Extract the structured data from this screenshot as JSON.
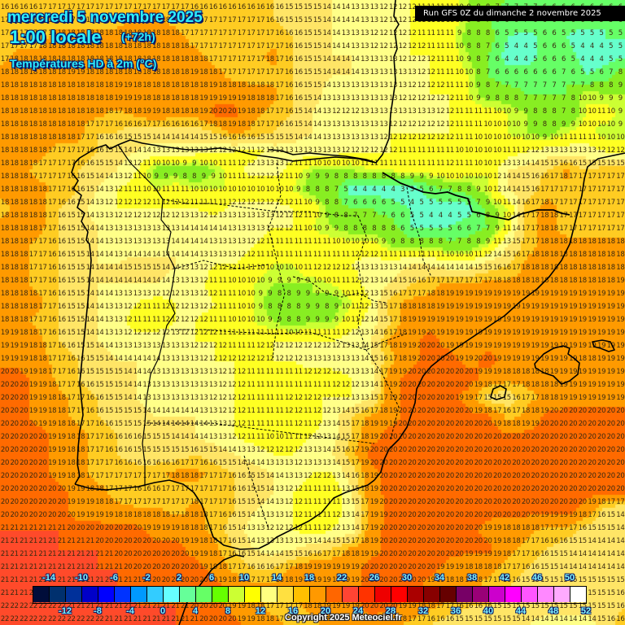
{
  "header": {
    "date": "mercredi 5 novembre 2025",
    "hour": "1:00 locale",
    "offset": "(+72h)",
    "parameter": "Températures HD à 2m (°C)"
  },
  "run_info": "Run GFS 0Z du dimanche 2 novembre 2025",
  "copyright": "Copyright 2025 Meteociel.fr",
  "legend": {
    "colors": [
      "#000d3a",
      "#00306e",
      "#00309a",
      "#0000c8",
      "#0000ff",
      "#0033ff",
      "#0099ff",
      "#33ccff",
      "#66ffff",
      "#66ff99",
      "#66ff66",
      "#66ff00",
      "#ccff33",
      "#ffff00",
      "#ffff80",
      "#ffe040",
      "#ffc000",
      "#ff9900",
      "#ff6600",
      "#ff4433",
      "#ff3300",
      "#ee0000",
      "#ff0000",
      "#aa0000",
      "#880000",
      "#660000",
      "#770066",
      "#990077",
      "#cc00cc",
      "#ff00ff",
      "#ff55ff",
      "#ff88ff",
      "#ffaaff",
      "#ffffff"
    ],
    "top_ticks": [
      "-14",
      "-10",
      "-6",
      "-2",
      "2",
      "6",
      "10",
      "14",
      "18",
      "22",
      "26",
      "30",
      "34",
      "38",
      "42",
      "46",
      "50"
    ],
    "bottom_ticks": [
      "-12",
      "-8",
      "-4",
      "0",
      "4",
      "8",
      "12",
      "16",
      "20",
      "24",
      "28",
      "32",
      "36",
      "40",
      "44",
      "48",
      "52"
    ]
  },
  "map": {
    "region": "Péninsule Ibérique / Golfe de Gascogne / Baléares",
    "grid_cols": 66,
    "grid_rows": 48,
    "coarse_field": [
      [
        16,
        16,
        16,
        17,
        17,
        17,
        17,
        17,
        17,
        17,
        16,
        16,
        16,
        16,
        16,
        15,
        15,
        14,
        13,
        13,
        12,
        12,
        11,
        11,
        9,
        8,
        7,
        7,
        6,
        6,
        6,
        6,
        6
      ],
      [
        17,
        17,
        17,
        17,
        17,
        17,
        17,
        18,
        18,
        17,
        17,
        17,
        17,
        17,
        16,
        15,
        15,
        14,
        14,
        13,
        12,
        12,
        11,
        11,
        9,
        7,
        6,
        7,
        6,
        6,
        6,
        5,
        6
      ],
      [
        17,
        17,
        17,
        18,
        18,
        18,
        18,
        18,
        18,
        18,
        17,
        17,
        17,
        17,
        17,
        16,
        15,
        14,
        13,
        12,
        12,
        12,
        11,
        11,
        8,
        8,
        5,
        4,
        6,
        5,
        4,
        5,
        5
      ],
      [
        17,
        18,
        18,
        18,
        18,
        18,
        18,
        18,
        18,
        18,
        18,
        17,
        17,
        17,
        18,
        16,
        15,
        14,
        14,
        13,
        13,
        12,
        12,
        11,
        9,
        7,
        4,
        4,
        6,
        6,
        4,
        4,
        5
      ],
      [
        18,
        18,
        18,
        18,
        19,
        18,
        18,
        18,
        18,
        18,
        19,
        18,
        17,
        17,
        17,
        16,
        15,
        14,
        14,
        13,
        13,
        13,
        12,
        11,
        10,
        7,
        6,
        6,
        6,
        7,
        5,
        6,
        9
      ],
      [
        18,
        18,
        18,
        18,
        18,
        18,
        19,
        19,
        18,
        18,
        18,
        19,
        19,
        18,
        18,
        16,
        15,
        13,
        13,
        13,
        13,
        12,
        12,
        12,
        10,
        8,
        8,
        7,
        7,
        7,
        10,
        9,
        9
      ],
      [
        18,
        18,
        18,
        18,
        18,
        18,
        17,
        18,
        19,
        18,
        18,
        20,
        20,
        18,
        17,
        16,
        14,
        12,
        12,
        13,
        13,
        13,
        13,
        12,
        11,
        11,
        10,
        9,
        8,
        7,
        10,
        11,
        9
      ],
      [
        18,
        18,
        18,
        18,
        18,
        16,
        16,
        15,
        15,
        15,
        15,
        16,
        18,
        17,
        16,
        15,
        14,
        13,
        13,
        13,
        12,
        12,
        12,
        12,
        11,
        10,
        10,
        9,
        8,
        10,
        11,
        9,
        9
      ],
      [
        18,
        18,
        18,
        17,
        17,
        16,
        15,
        14,
        13,
        13,
        13,
        12,
        12,
        11,
        13,
        13,
        13,
        13,
        12,
        12,
        12,
        11,
        11,
        11,
        10,
        10,
        11,
        12,
        13,
        13,
        13,
        12,
        12
      ],
      [
        18,
        18,
        17,
        17,
        16,
        15,
        14,
        12,
        8,
        8,
        7,
        9,
        11,
        13,
        13,
        11,
        9,
        9,
        9,
        10,
        10,
        11,
        11,
        12,
        11,
        10,
        14,
        15,
        16,
        18,
        16,
        17,
        17
      ],
      [
        18,
        18,
        18,
        17,
        16,
        14,
        12,
        11,
        10,
        11,
        10,
        10,
        10,
        10,
        10,
        10,
        8,
        8,
        4,
        4,
        4,
        3,
        6,
        7,
        8,
        10,
        14,
        15,
        17,
        17,
        17,
        17,
        17
      ],
      [
        17,
        18,
        18,
        16,
        15,
        13,
        12,
        12,
        12,
        12,
        12,
        11,
        13,
        13,
        13,
        12,
        11,
        8,
        7,
        7,
        6,
        5,
        4,
        4,
        4,
        8,
        10,
        17,
        18,
        17,
        17,
        17,
        17
      ],
      [
        18,
        18,
        18,
        16,
        15,
        14,
        13,
        13,
        13,
        13,
        14,
        14,
        13,
        13,
        12,
        12,
        10,
        9,
        8,
        8,
        8,
        5,
        5,
        5,
        6,
        7,
        11,
        17,
        18,
        17,
        17,
        17,
        17
      ],
      [
        18,
        18,
        17,
        16,
        15,
        14,
        13,
        13,
        13,
        14,
        14,
        13,
        13,
        12,
        11,
        11,
        11,
        11,
        11,
        11,
        9,
        9,
        9,
        8,
        8,
        10,
        14,
        17,
        18,
        18,
        18,
        18,
        18
      ],
      [
        18,
        18,
        17,
        16,
        15,
        14,
        14,
        15,
        15,
        14,
        13,
        12,
        12,
        11,
        10,
        10,
        12,
        12,
        12,
        13,
        13,
        14,
        14,
        13,
        13,
        15,
        16,
        18,
        18,
        18,
        18,
        18,
        18
      ],
      [
        18,
        18,
        17,
        16,
        15,
        14,
        14,
        14,
        14,
        13,
        13,
        11,
        10,
        10,
        9,
        9,
        9,
        10,
        11,
        13,
        14,
        16,
        17,
        18,
        18,
        18,
        18,
        18,
        18,
        18,
        18,
        18,
        19
      ],
      [
        18,
        18,
        18,
        16,
        15,
        14,
        13,
        12,
        11,
        12,
        13,
        12,
        11,
        10,
        8,
        8,
        9,
        8,
        10,
        12,
        17,
        18,
        18,
        19,
        19,
        19,
        19,
        19,
        19,
        19,
        19,
        19,
        19
      ],
      [
        18,
        18,
        17,
        16,
        15,
        14,
        13,
        11,
        11,
        12,
        12,
        11,
        10,
        10,
        9,
        8,
        9,
        9,
        11,
        13,
        16,
        19,
        19,
        19,
        19,
        19,
        19,
        19,
        19,
        19,
        19,
        19,
        19
      ],
      [
        19,
        19,
        18,
        16,
        15,
        14,
        13,
        13,
        13,
        13,
        12,
        12,
        11,
        11,
        12,
        12,
        12,
        12,
        13,
        14,
        18,
        19,
        20,
        19,
        19,
        19,
        19,
        19,
        19,
        19,
        19,
        19,
        19
      ],
      [
        19,
        19,
        18,
        17,
        16,
        15,
        14,
        14,
        14,
        13,
        13,
        12,
        12,
        12,
        12,
        12,
        13,
        13,
        13,
        14,
        17,
        19,
        20,
        20,
        19,
        20,
        19,
        19,
        19,
        19,
        18,
        19,
        19
      ],
      [
        20,
        20,
        19,
        17,
        16,
        15,
        15,
        14,
        13,
        13,
        13,
        13,
        12,
        11,
        11,
        11,
        11,
        11,
        12,
        13,
        19,
        20,
        20,
        20,
        20,
        19,
        18,
        18,
        18,
        19,
        19,
        19,
        19
      ],
      [
        20,
        20,
        19,
        18,
        17,
        16,
        15,
        14,
        13,
        13,
        13,
        12,
        12,
        11,
        11,
        12,
        12,
        12,
        12,
        14,
        19,
        20,
        20,
        20,
        19,
        15,
        15,
        17,
        18,
        19,
        19,
        19,
        19
      ],
      [
        20,
        20,
        19,
        18,
        17,
        16,
        15,
        15,
        14,
        14,
        14,
        13,
        12,
        11,
        11,
        12,
        11,
        13,
        16,
        18,
        19,
        20,
        20,
        20,
        20,
        20,
        17,
        18,
        20,
        20,
        20,
        20,
        20
      ],
      [
        20,
        20,
        20,
        19,
        18,
        17,
        16,
        16,
        15,
        14,
        14,
        13,
        12,
        11,
        10,
        11,
        12,
        13,
        16,
        19,
        20,
        20,
        20,
        20,
        20,
        20,
        20,
        20,
        20,
        20,
        20,
        20,
        20
      ],
      [
        20,
        20,
        20,
        19,
        18,
        17,
        16,
        15,
        15,
        15,
        16,
        15,
        14,
        13,
        12,
        12,
        13,
        14,
        17,
        20,
        20,
        20,
        20,
        20,
        20,
        20,
        20,
        20,
        20,
        20,
        20,
        20,
        20
      ],
      [
        20,
        20,
        20,
        19,
        18,
        17,
        17,
        17,
        17,
        18,
        18,
        17,
        16,
        15,
        14,
        13,
        12,
        12,
        15,
        19,
        20,
        20,
        20,
        20,
        20,
        20,
        20,
        20,
        20,
        20,
        20,
        20,
        20
      ],
      [
        20,
        20,
        20,
        20,
        19,
        18,
        17,
        16,
        16,
        17,
        17,
        17,
        16,
        15,
        14,
        12,
        11,
        10,
        14,
        19,
        20,
        20,
        20,
        20,
        20,
        20,
        20,
        20,
        20,
        20,
        20,
        20,
        20
      ],
      [
        20,
        20,
        20,
        20,
        19,
        19,
        18,
        18,
        18,
        17,
        18,
        17,
        16,
        14,
        13,
        12,
        11,
        11,
        13,
        18,
        20,
        20,
        20,
        20,
        20,
        20,
        20,
        20,
        20,
        20,
        19,
        15,
        14
      ],
      [
        21,
        21,
        21,
        21,
        20,
        20,
        20,
        20,
        19,
        19,
        18,
        17,
        15,
        13,
        12,
        12,
        11,
        12,
        13,
        19,
        20,
        20,
        20,
        20,
        20,
        19,
        18,
        18,
        17,
        17,
        15,
        15,
        14
      ],
      [
        21,
        21,
        21,
        21,
        21,
        21,
        20,
        20,
        20,
        20,
        19,
        18,
        16,
        14,
        13,
        14,
        15,
        16,
        18,
        19,
        20,
        20,
        20,
        20,
        20,
        20,
        18,
        17,
        16,
        15,
        14,
        14,
        14
      ],
      [
        21,
        21,
        21,
        21,
        21,
        21,
        21,
        20,
        20,
        20,
        20,
        19,
        17,
        16,
        16,
        18,
        19,
        19,
        19,
        20,
        20,
        20,
        20,
        19,
        18,
        18,
        17,
        16,
        15,
        14,
        14,
        14,
        14
      ],
      [
        21,
        21,
        21,
        21,
        21,
        21,
        21,
        21,
        20,
        20,
        20,
        20,
        19,
        18,
        18,
        19,
        19,
        19,
        19,
        20,
        20,
        20,
        19,
        18,
        18,
        17,
        16,
        15,
        15,
        15,
        15,
        15,
        16
      ],
      [
        22,
        22,
        22,
        22,
        21,
        21,
        21,
        21,
        21,
        21,
        20,
        20,
        19,
        18,
        17,
        17,
        18,
        19,
        19,
        20,
        20,
        19,
        18,
        17,
        16,
        16,
        15,
        15,
        15,
        15,
        15,
        15,
        16
      ],
      [
        22,
        22,
        22,
        22,
        22,
        22,
        21,
        21,
        21,
        21,
        21,
        20,
        20,
        19,
        18,
        17,
        17,
        18,
        19,
        19,
        18,
        17,
        16,
        15,
        15,
        15,
        15,
        14,
        13,
        13,
        13,
        15,
        17
      ]
    ]
  }
}
